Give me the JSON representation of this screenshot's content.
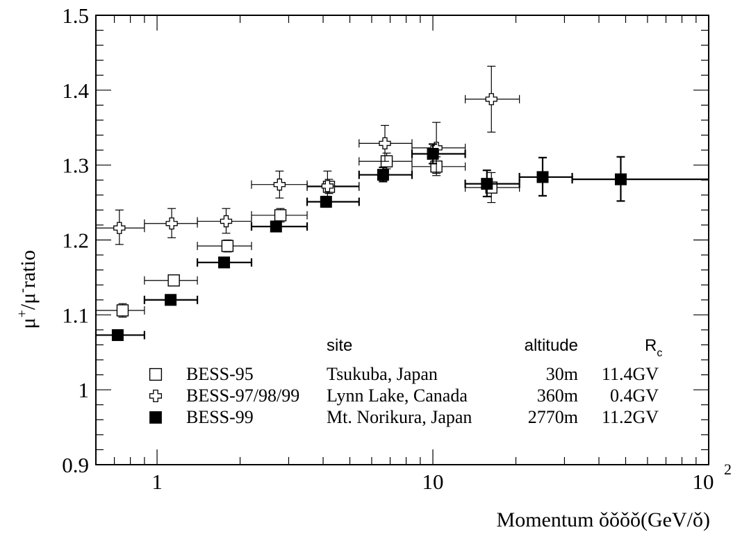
{
  "chart_data": {
    "type": "scatter",
    "ylabel": "ratio",
    "xlabel": "Momentum",
    "xlabel_unit": "(GeV/",
    "xlabel_unit_close": ")",
    "xscale": "log",
    "xlim": [
      0.6,
      100
    ],
    "ylim": [
      0.9,
      1.5
    ],
    "y_ticks": [
      "0.9",
      "1",
      "1.1",
      "1.2",
      "1.3",
      "1.4",
      "1.5"
    ],
    "y_tick_values": [
      0.9,
      1.0,
      1.1,
      1.2,
      1.3,
      1.4,
      1.5
    ],
    "x_ticks": [
      {
        "value": 1,
        "label": "1"
      },
      {
        "value": 10,
        "label": "10"
      },
      {
        "value": 100,
        "label": "10",
        "exponent": "2"
      }
    ],
    "grid": false,
    "legend_position": "bottom-right",
    "legend": {
      "headers": {
        "site": "site",
        "altitude": "altitude",
        "rc": "R",
        "rc_sub": "c"
      },
      "entries": [
        {
          "label": "BESS-95",
          "site": "Tsukuba, Japan",
          "altitude": "30m",
          "rc": "11.4GV",
          "marker": "open-square"
        },
        {
          "label": "BESS-97/98/99",
          "site": "Lynn Lake, Canada",
          "altitude": "360m",
          "rc": "0.4GV",
          "marker": "open-cross"
        },
        {
          "label": "BESS-99",
          "site": "Mt. Norikura, Japan",
          "altitude": "2770m",
          "rc": "11.2GV",
          "marker": "filled-square"
        }
      ]
    },
    "series": [
      {
        "name": "BESS-95",
        "marker": "open-square",
        "points": [
          {
            "x": 0.75,
            "xlo": 0.6,
            "xhi": 0.9,
            "y": 1.106,
            "ylo": 1.097,
            "yhi": 1.115
          },
          {
            "x": 1.15,
            "xlo": 0.9,
            "xhi": 1.4,
            "y": 1.146,
            "ylo": 1.139,
            "yhi": 1.153
          },
          {
            "x": 1.8,
            "xlo": 1.4,
            "xhi": 2.2,
            "y": 1.192,
            "ylo": 1.184,
            "yhi": 1.2
          },
          {
            "x": 2.8,
            "xlo": 2.2,
            "xhi": 3.5,
            "y": 1.233,
            "ylo": 1.224,
            "yhi": 1.242
          },
          {
            "x": 4.2,
            "xlo": 3.5,
            "xhi": 5.4,
            "y": 1.271,
            "ylo": 1.262,
            "yhi": 1.281
          },
          {
            "x": 6.8,
            "xlo": 5.4,
            "xhi": 8.4,
            "y": 1.305,
            "ylo": 1.295,
            "yhi": 1.316
          },
          {
            "x": 10.3,
            "xlo": 8.4,
            "xhi": 13.1,
            "y": 1.298,
            "ylo": 1.286,
            "yhi": 1.311
          },
          {
            "x": 16.3,
            "xlo": 13.1,
            "xhi": 20.6,
            "y": 1.27,
            "ylo": 1.25,
            "yhi": 1.29
          }
        ]
      },
      {
        "name": "BESS-97/98/99",
        "marker": "open-cross",
        "points": [
          {
            "x": 0.73,
            "xlo": 0.6,
            "xhi": 0.9,
            "y": 1.216,
            "ylo": 1.194,
            "yhi": 1.24
          },
          {
            "x": 1.13,
            "xlo": 0.9,
            "xhi": 1.4,
            "y": 1.222,
            "ylo": 1.203,
            "yhi": 1.242
          },
          {
            "x": 1.78,
            "xlo": 1.4,
            "xhi": 2.2,
            "y": 1.225,
            "ylo": 1.209,
            "yhi": 1.242
          },
          {
            "x": 2.78,
            "xlo": 2.2,
            "xhi": 3.5,
            "y": 1.274,
            "ylo": 1.256,
            "yhi": 1.292
          },
          {
            "x": 4.15,
            "xlo": 3.5,
            "xhi": 5.4,
            "y": 1.272,
            "ylo": 1.253,
            "yhi": 1.292
          },
          {
            "x": 6.7,
            "xlo": 5.4,
            "xhi": 8.4,
            "y": 1.329,
            "ylo": 1.305,
            "yhi": 1.353
          },
          {
            "x": 10.3,
            "xlo": 8.4,
            "xhi": 13.1,
            "y": 1.323,
            "ylo": 1.289,
            "yhi": 1.357
          },
          {
            "x": 16.3,
            "xlo": 13.1,
            "xhi": 20.6,
            "y": 1.388,
            "ylo": 1.344,
            "yhi": 1.432
          }
        ]
      },
      {
        "name": "BESS-99",
        "marker": "filled-square",
        "points": [
          {
            "x": 0.72,
            "xlo": 0.6,
            "xhi": 0.9,
            "y": 1.073,
            "ylo": 1.068,
            "yhi": 1.078
          },
          {
            "x": 1.12,
            "xlo": 0.9,
            "xhi": 1.4,
            "y": 1.12,
            "ylo": 1.115,
            "yhi": 1.125
          },
          {
            "x": 1.75,
            "xlo": 1.4,
            "xhi": 2.2,
            "y": 1.17,
            "ylo": 1.165,
            "yhi": 1.175
          },
          {
            "x": 2.7,
            "xlo": 2.2,
            "xhi": 3.5,
            "y": 1.218,
            "ylo": 1.212,
            "yhi": 1.224
          },
          {
            "x": 4.1,
            "xlo": 3.5,
            "xhi": 5.4,
            "y": 1.251,
            "ylo": 1.244,
            "yhi": 1.258
          },
          {
            "x": 6.6,
            "xlo": 5.4,
            "xhi": 8.4,
            "y": 1.287,
            "ylo": 1.278,
            "yhi": 1.297
          },
          {
            "x": 10.0,
            "xlo": 8.4,
            "xhi": 13.1,
            "y": 1.315,
            "ylo": 1.302,
            "yhi": 1.328
          },
          {
            "x": 15.7,
            "xlo": 13.1,
            "xhi": 20.6,
            "y": 1.275,
            "ylo": 1.258,
            "yhi": 1.293
          },
          {
            "x": 25.0,
            "xlo": 20.6,
            "xhi": 32.0,
            "y": 1.284,
            "ylo": 1.259,
            "yhi": 1.31
          },
          {
            "x": 48.0,
            "xlo": 32.0,
            "xhi": 100,
            "y": 1.281,
            "ylo": 1.252,
            "yhi": 1.311
          }
        ]
      }
    ]
  }
}
